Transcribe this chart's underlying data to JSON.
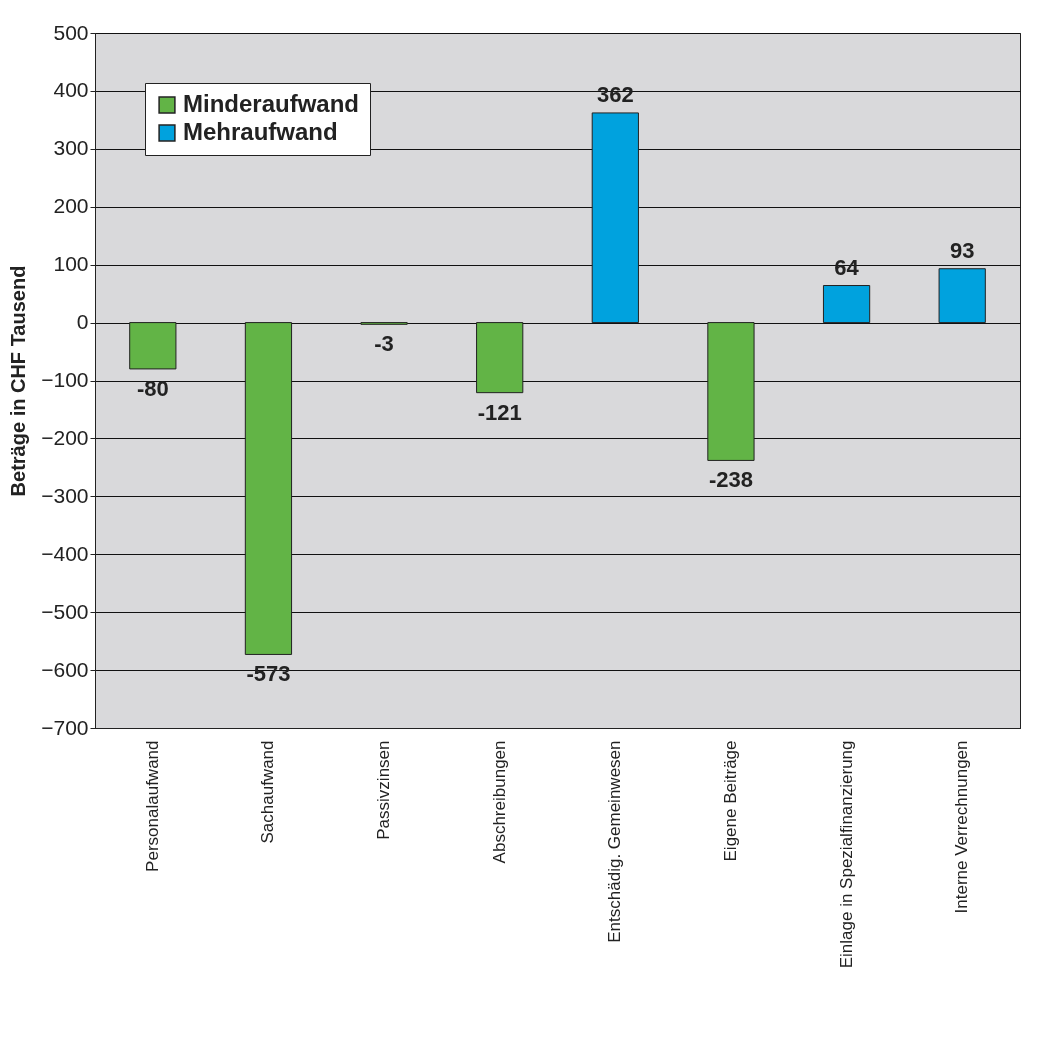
{
  "chart_data": {
    "type": "bar",
    "ylabel": "Beträge in CHF Tausend",
    "categories": [
      "Personalaufwand",
      "Sachaufwand",
      "Passivzinsen",
      "Abschreibungen",
      "Entschädig. Gemeinwesen",
      "Eigene Beiträge",
      "Einlage in Spezialfinanzierung",
      "Interne Verrechnungen"
    ],
    "series": [
      {
        "name": "Minderaufwand",
        "color": "#62b446",
        "values": [
          -80,
          -573,
          -3,
          -121,
          null,
          -238,
          null,
          null
        ]
      },
      {
        "name": "Mehraufwand",
        "color": "#00a2de",
        "values": [
          null,
          null,
          null,
          null,
          362,
          null,
          64,
          93
        ]
      }
    ],
    "ylim": [
      -700,
      500
    ],
    "yticks": [
      -700,
      -600,
      -500,
      -400,
      -300,
      -200,
      -100,
      0,
      100,
      200,
      300,
      400,
      500
    ],
    "grid": "y",
    "legend": "top left",
    "data_labels": true
  }
}
